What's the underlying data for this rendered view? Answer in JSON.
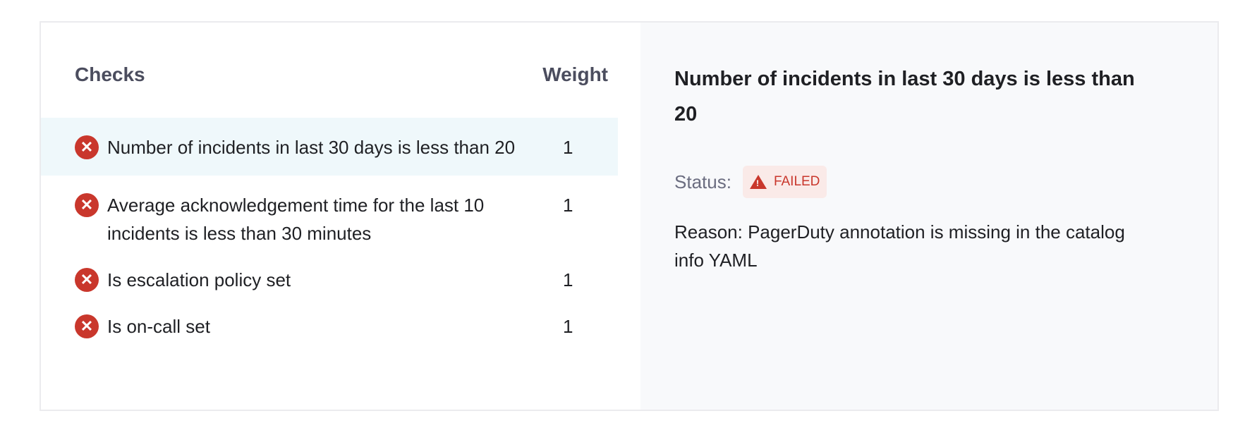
{
  "table": {
    "header_checks": "Checks",
    "header_weight": "Weight",
    "rows": [
      {
        "label": "Number of incidents in last 30 days is less than 20",
        "weight": "1",
        "status": "failed",
        "selected": true
      },
      {
        "label": "Average acknowledgement time for the last 10 incidents is less than 30 minutes",
        "weight": "1",
        "status": "failed"
      },
      {
        "label": "Is escalation policy set",
        "weight": "1",
        "status": "failed"
      },
      {
        "label": "Is on-call set",
        "weight": "1",
        "status": "failed"
      }
    ]
  },
  "detail": {
    "title": "Number of incidents in last 30 days is less than 20",
    "status_label": "Status:",
    "status_value": "FAILED",
    "reason": "Reason: PagerDuty annotation is missing in the catalog info YAML"
  },
  "colors": {
    "failed": "#c9372c",
    "selected_row": "#eff8fb",
    "panel_bg": "#f8f9fb"
  }
}
